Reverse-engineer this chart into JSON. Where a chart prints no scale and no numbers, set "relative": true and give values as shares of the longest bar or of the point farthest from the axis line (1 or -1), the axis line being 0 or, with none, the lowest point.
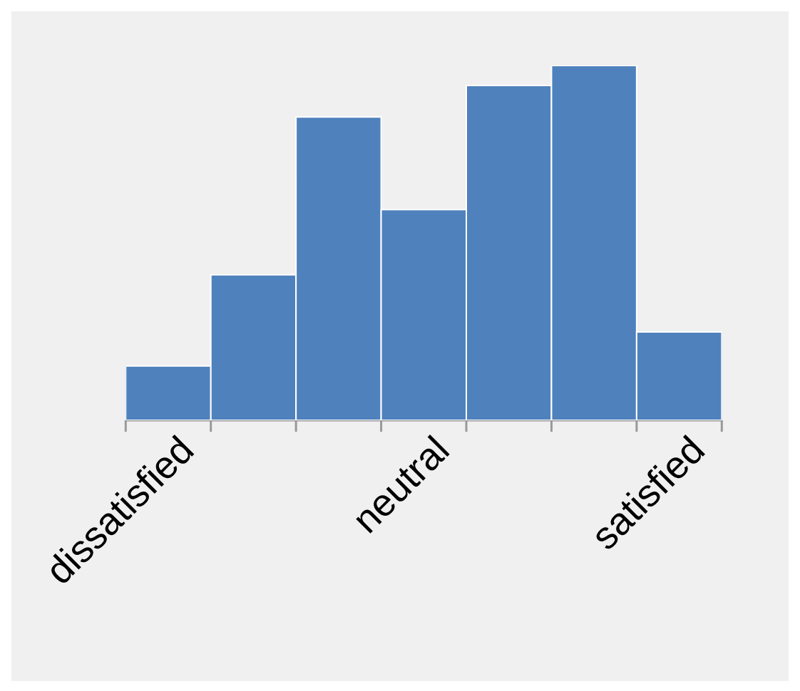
{
  "chart_data": {
    "type": "bar",
    "relative": true,
    "color": "#4f81bd",
    "categories": [
      "dissatisfied",
      null,
      null,
      "neutral",
      null,
      null,
      "satisfied"
    ],
    "values": [
      0.153,
      0.41,
      0.855,
      0.594,
      0.944,
      1,
      0.249
    ]
  }
}
